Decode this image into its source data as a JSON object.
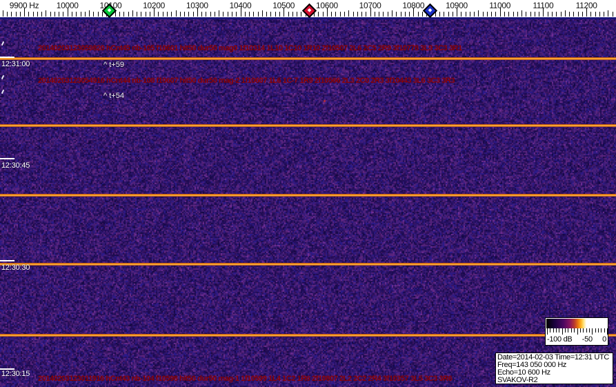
{
  "frequency_axis": {
    "tick_labels": [
      "9900 Hz",
      "10000",
      "10100",
      "10200",
      "10300",
      "10400",
      "10500",
      "10600",
      "10700",
      "10800",
      "10900",
      "11000",
      "11100",
      "11200"
    ],
    "markers": [
      {
        "name": "green",
        "color": "#00c838"
      },
      {
        "name": "red",
        "color": "#d40f2f"
      },
      {
        "name": "blue",
        "color": "#1a30c8"
      }
    ]
  },
  "waterfall": {
    "detections": [
      {
        "text": "20140203123059820 hCnt45 nb-105 f10601 hit50 dur50 mag0 1f10314 1L10 1C10 1R10 2f10507 2L6 2C5 2R9 3f10778 3L9 3C3 3R1"
      },
      {
        "text": "20140203123054916 hCnt44 nb-108 f10607 hit50 dur50 mag-2 1f10607 1L6 1C-7 1R9 2f10566 2L3 2C0 2R3 3f10443 3L6 3C3 3R3"
      },
      {
        "text": "20140203123011916 hCnt43 nb-104 f10598 hit50 dur50 mag-1 1f10599 1L4 1C2 1R6 2f10807 2L2 2C2 2R4 3f10357 3L5 3C3 3R6"
      }
    ],
    "time_labels": [
      "12:31:00",
      "12:30:45",
      "12:30:30",
      "12:30:15"
    ],
    "event_markers": [
      "^ t+59",
      "^ t+54"
    ]
  },
  "legend": {
    "scale_labels": [
      "-100 dB",
      "-50",
      "0"
    ]
  },
  "info_box": {
    "lines": [
      "Date=2014-02-03 Time=12:31 UTC",
      "Freq=143 050 000 Hz",
      "Echo=10 600 Hz",
      "SVAKOV-R2"
    ]
  },
  "colors": {
    "annotation_text": "#8b0000",
    "sweep_line": "#ff9c20",
    "background_base": "#241060",
    "axis_background": "#ffffff"
  }
}
